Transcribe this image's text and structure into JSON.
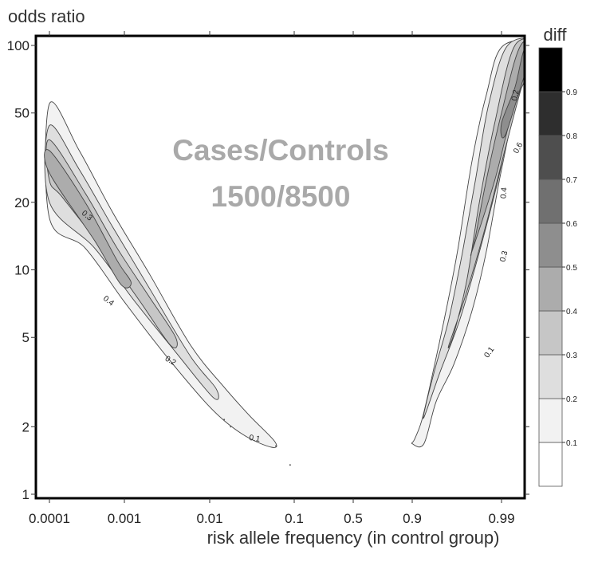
{
  "chart_data": {
    "type": "contour",
    "ylabel": "odds ratio",
    "xlabel": "risk allele frequency (in control group)",
    "annotation_lines": [
      "Cases/Controls",
      "1500/8500"
    ],
    "x_ticks": [
      "0.0001",
      "0.001",
      "0.01",
      "0.1",
      "0.5",
      "0.9",
      "0.99"
    ],
    "y_ticks": [
      1,
      2,
      5,
      10,
      20,
      50,
      100
    ],
    "y_scale": "log",
    "ylim": [
      1,
      110
    ],
    "colorbar": {
      "title": "diff",
      "levels": [
        0.1,
        0.2,
        0.3,
        0.4,
        0.5,
        0.6,
        0.7,
        0.8,
        0.9
      ],
      "colors": [
        "#ffffff",
        "#f2f2f2",
        "#dedede",
        "#c6c6c6",
        "#acacac",
        "#8e8e8e",
        "#707070",
        "#4e4e4e",
        "#2e2e2e",
        "#000000"
      ]
    },
    "contour_labels": [
      "0.1",
      "0.2",
      "0.3",
      "0.4",
      "0.5",
      "0.6"
    ],
    "regions": [
      {
        "name": "left",
        "levels": [
          {
            "level": 0.1,
            "points": [
              [
                0.0001,
                55
              ],
              [
                0.00025,
                34
              ],
              [
                0.0007,
                18
              ],
              [
                0.002,
                9.5
              ],
              [
                0.006,
                4.6
              ],
              [
                0.015,
                3.0
              ],
              [
                0.03,
                2.25
              ],
              [
                0.06,
                1.72
              ],
              [
                0.055,
                1.62
              ],
              [
                0.025,
                1.85
              ],
              [
                0.01,
                2.45
              ],
              [
                0.003,
                4.2
              ],
              [
                0.001,
                7.2
              ],
              [
                0.0003,
                12.5
              ],
              [
                0.0001,
                17
              ]
            ]
          },
          {
            "level": 0.2,
            "points": [
              [
                0.0001,
                44
              ],
              [
                0.00025,
                28
              ],
              [
                0.0007,
                15.5
              ],
              [
                0.002,
                8.2
              ],
              [
                0.006,
                4.1
              ],
              [
                0.012,
                2.95
              ],
              [
                0.011,
                2.7
              ],
              [
                0.004,
                4.3
              ],
              [
                0.0013,
                7.3
              ],
              [
                0.0004,
                12.5
              ],
              [
                0.0001,
                20
              ]
            ]
          },
          {
            "level": 0.3,
            "points": [
              [
                0.0001,
                38
              ],
              [
                0.0003,
                22
              ],
              [
                0.0008,
                12.5
              ],
              [
                0.002,
                7.5
              ],
              [
                0.004,
                5.0
              ],
              [
                0.0035,
                4.6
              ],
              [
                0.0015,
                7.3
              ],
              [
                0.0005,
                12.5
              ],
              [
                0.00015,
                21
              ],
              [
                0.0001,
                25
              ]
            ]
          },
          {
            "level": 0.4,
            "points": [
              [
                0.0001,
                34
              ],
              [
                0.0003,
                20
              ],
              [
                0.0008,
                11
              ],
              [
                0.0012,
                8.8
              ],
              [
                0.0009,
                8.6
              ],
              [
                0.0004,
                13.5
              ],
              [
                0.0001,
                27
              ]
            ]
          }
        ]
      },
      {
        "name": "right",
        "levels": [
          {
            "level": 0.1,
            "points": [
              [
                0.9,
                1.68
              ],
              [
                0.925,
                1.68
              ],
              [
                0.945,
                2.6
              ],
              [
                0.965,
                3.8
              ],
              [
                0.978,
                6.5
              ],
              [
                0.985,
                12
              ],
              [
                0.99,
                28
              ],
              [
                0.994,
                65
              ],
              [
                0.997,
                100
              ],
              [
                0.9905,
                100
              ],
              [
                0.985,
                60
              ],
              [
                0.978,
                30
              ],
              [
                0.968,
                12
              ],
              [
                0.955,
                6
              ],
              [
                0.935,
                3
              ],
              [
                0.92,
                2.1
              ],
              [
                0.905,
                1.75
              ]
            ]
          },
          {
            "level": 0.2,
            "points": [
              [
                0.925,
                2.2
              ],
              [
                0.95,
                3.5
              ],
              [
                0.97,
                6
              ],
              [
                0.982,
                12
              ],
              [
                0.989,
                25
              ],
              [
                0.993,
                55
              ],
              [
                0.996,
                100
              ],
              [
                0.9915,
                100
              ],
              [
                0.986,
                55
              ],
              [
                0.98,
                25
              ],
              [
                0.972,
                12
              ],
              [
                0.96,
                6
              ],
              [
                0.945,
                3.8
              ],
              [
                0.93,
                2.6
              ]
            ]
          },
          {
            "level": 0.3,
            "points": [
              [
                0.96,
                4.6
              ],
              [
                0.975,
                8
              ],
              [
                0.985,
                16
              ],
              [
                0.991,
                35
              ],
              [
                0.995,
                80
              ],
              [
                0.9965,
                100
              ],
              [
                0.993,
                100
              ],
              [
                0.988,
                45
              ],
              [
                0.982,
                20
              ],
              [
                0.975,
                9
              ],
              [
                0.965,
                5.2
              ]
            ]
          },
          {
            "level": 0.4,
            "points": [
              [
                0.978,
                12
              ],
              [
                0.988,
                25
              ],
              [
                0.993,
                55
              ],
              [
                0.9965,
                100
              ],
              [
                0.994,
                100
              ],
              [
                0.99,
                50
              ],
              [
                0.985,
                25
              ],
              [
                0.98,
                14
              ]
            ]
          },
          {
            "level": 0.5,
            "points": [
              [
                0.991,
                40
              ],
              [
                0.995,
                80
              ],
              [
                0.9967,
                100
              ],
              [
                0.9948,
                100
              ],
              [
                0.993,
                65
              ],
              [
                0.99,
                45
              ]
            ]
          }
        ]
      }
    ]
  }
}
